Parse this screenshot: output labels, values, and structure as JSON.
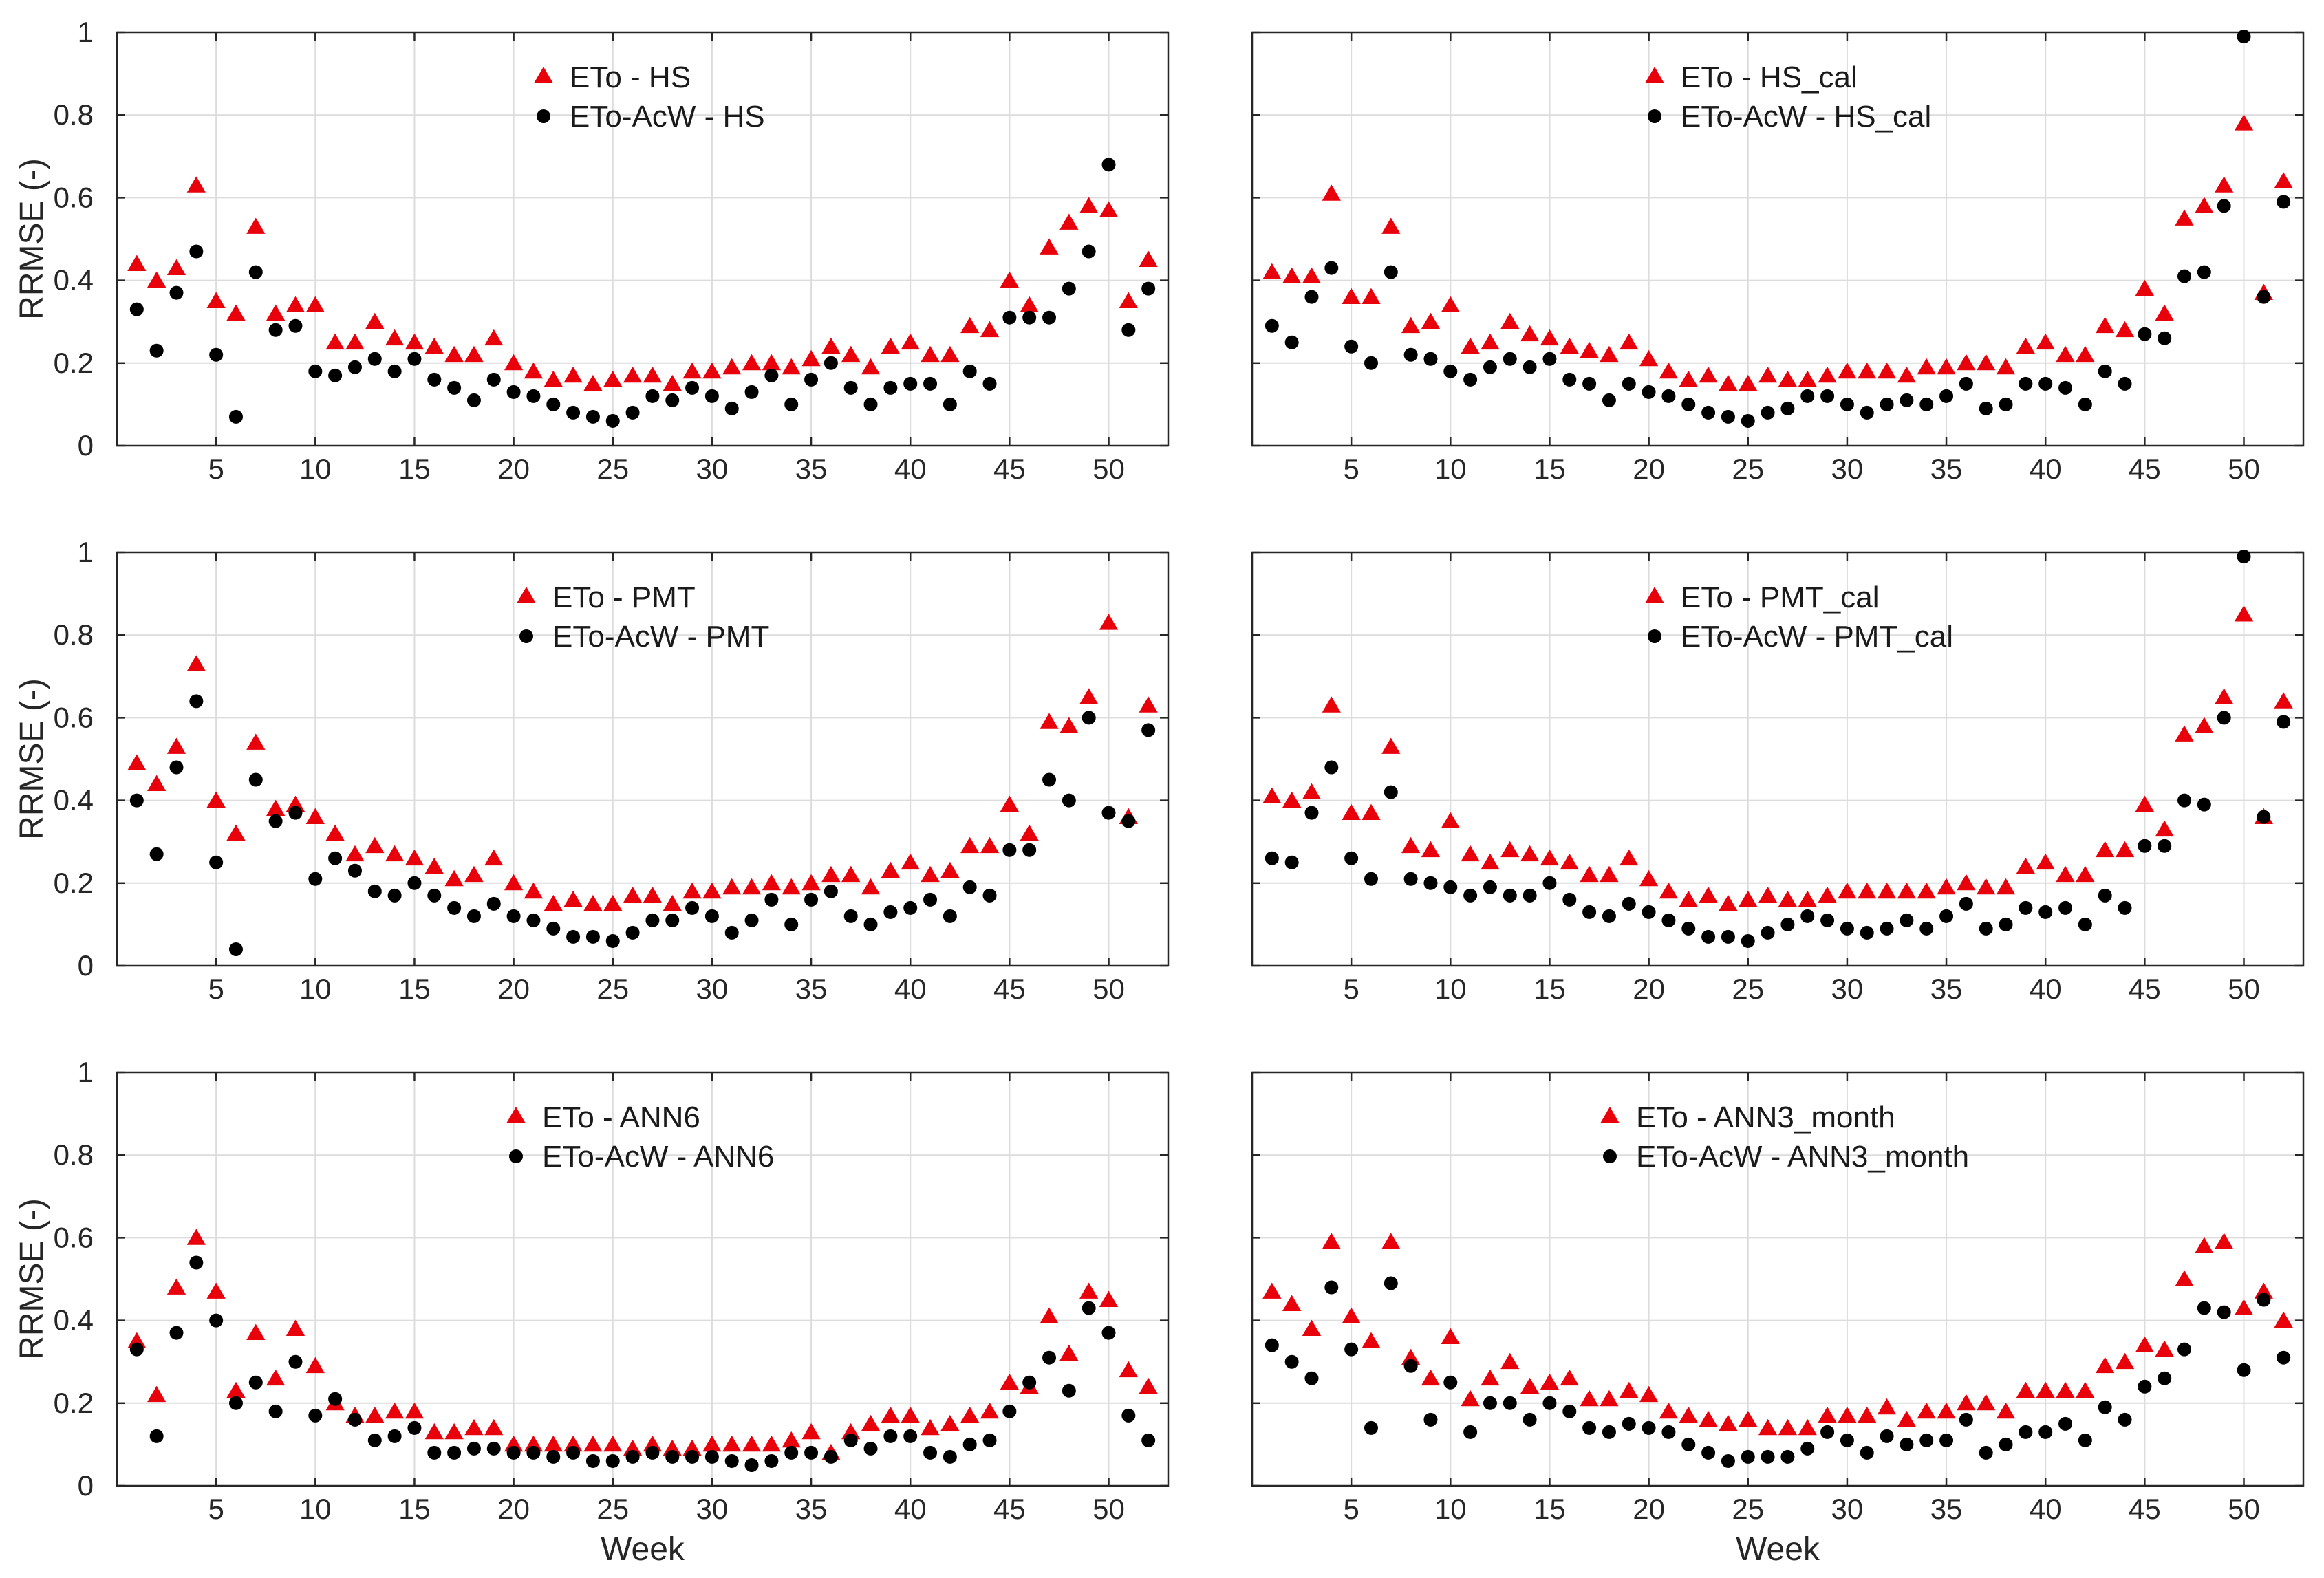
{
  "colors": {
    "eto": "#e8000b",
    "acw": "#000000",
    "grid": "#dcdcdc",
    "axis": "#262626"
  },
  "chart_data": [
    {
      "type": "scatter",
      "panel": "top-left",
      "xlabel": "",
      "ylabel": "RRMSE (-)",
      "xlim": [
        0,
        53
      ],
      "ylim": [
        0,
        1
      ],
      "xticks": [
        "5",
        "10",
        "15",
        "20",
        "25",
        "30",
        "35",
        "40",
        "45",
        "50"
      ],
      "yticks": [
        "0",
        "0.2",
        "0.4",
        "0.6",
        "0.8",
        "1"
      ],
      "legend_position": "top-center",
      "series": [
        {
          "name": "ETo - HS",
          "marker": "triangle",
          "color": "#e8000b",
          "values": [
            0.44,
            0.4,
            0.43,
            0.63,
            0.35,
            0.32,
            0.53,
            0.32,
            0.34,
            0.34,
            0.25,
            0.25,
            0.3,
            0.26,
            0.25,
            0.24,
            0.22,
            0.22,
            0.26,
            0.2,
            0.18,
            0.16,
            0.17,
            0.15,
            0.16,
            0.17,
            0.17,
            0.15,
            0.18,
            0.18,
            0.19,
            0.2,
            0.2,
            0.19,
            0.21,
            0.24,
            0.22,
            0.19,
            0.24,
            0.25,
            0.22,
            0.22,
            0.29,
            0.28,
            0.4,
            0.34,
            0.48,
            0.54,
            0.58,
            0.57,
            0.35,
            0.45
          ]
        },
        {
          "name": "ETo-AcW - HS",
          "marker": "circle",
          "color": "#000000",
          "values": [
            0.33,
            0.23,
            0.37,
            0.47,
            0.22,
            0.07,
            0.42,
            0.28,
            0.29,
            0.18,
            0.17,
            0.19,
            0.21,
            0.18,
            0.21,
            0.16,
            0.14,
            0.11,
            0.16,
            0.13,
            0.12,
            0.1,
            0.08,
            0.07,
            0.06,
            0.08,
            0.12,
            0.11,
            0.14,
            0.12,
            0.09,
            0.13,
            0.17,
            0.1,
            0.16,
            0.2,
            0.14,
            0.1,
            0.14,
            0.15,
            0.15,
            0.1,
            0.18,
            0.15,
            0.31,
            0.31,
            0.31,
            0.38,
            0.47,
            0.68,
            0.28,
            0.38
          ]
        }
      ]
    },
    {
      "type": "scatter",
      "panel": "top-right",
      "xlabel": "",
      "ylabel": "",
      "xlim": [
        0,
        53
      ],
      "ylim": [
        0,
        1
      ],
      "xticks": [
        "5",
        "10",
        "15",
        "20",
        "25",
        "30",
        "35",
        "40",
        "45",
        "50"
      ],
      "yticks": [],
      "legend_position": "top-center",
      "series": [
        {
          "name": "ETo - HS_cal",
          "marker": "triangle",
          "color": "#e8000b",
          "values": [
            0.42,
            0.41,
            0.41,
            0.61,
            0.36,
            0.36,
            0.53,
            0.29,
            0.3,
            0.34,
            0.24,
            0.25,
            0.3,
            0.27,
            0.26,
            0.24,
            0.23,
            0.22,
            0.25,
            0.21,
            0.18,
            0.16,
            0.17,
            0.15,
            0.15,
            0.17,
            0.16,
            0.16,
            0.17,
            0.18,
            0.18,
            0.18,
            0.17,
            0.19,
            0.19,
            0.2,
            0.2,
            0.19,
            0.24,
            0.25,
            0.22,
            0.22,
            0.29,
            0.28,
            0.38,
            0.32,
            0.55,
            0.58,
            0.63,
            0.78,
            0.37,
            0.64
          ]
        },
        {
          "name": "ETo-AcW - HS_cal",
          "marker": "circle",
          "color": "#000000",
          "values": [
            0.29,
            0.25,
            0.36,
            0.43,
            0.24,
            0.2,
            0.42,
            0.22,
            0.21,
            0.18,
            0.16,
            0.19,
            0.21,
            0.19,
            0.21,
            0.16,
            0.15,
            0.11,
            0.15,
            0.13,
            0.12,
            0.1,
            0.08,
            0.07,
            0.06,
            0.08,
            0.09,
            0.12,
            0.12,
            0.1,
            0.08,
            0.1,
            0.11,
            0.1,
            0.12,
            0.15,
            0.09,
            0.1,
            0.15,
            0.15,
            0.14,
            0.1,
            0.18,
            0.15,
            0.27,
            0.26,
            0.41,
            0.42,
            0.58,
            0.99,
            0.36,
            0.59
          ]
        }
      ]
    },
    {
      "type": "scatter",
      "panel": "middle-left",
      "xlabel": "",
      "ylabel": "RRMSE (-)",
      "xlim": [
        0,
        53
      ],
      "ylim": [
        0,
        1
      ],
      "xticks": [
        "5",
        "10",
        "15",
        "20",
        "25",
        "30",
        "35",
        "40",
        "45",
        "50"
      ],
      "yticks": [
        "0",
        "0.2",
        "0.4",
        "0.6",
        "0.8",
        "1"
      ],
      "legend_position": "top-center",
      "series": [
        {
          "name": "ETo - PMT",
          "marker": "triangle",
          "color": "#e8000b",
          "values": [
            0.49,
            0.44,
            0.53,
            0.73,
            0.4,
            0.32,
            0.54,
            0.38,
            0.39,
            0.36,
            0.32,
            0.27,
            0.29,
            0.27,
            0.26,
            0.24,
            0.21,
            0.22,
            0.26,
            0.2,
            0.18,
            0.15,
            0.16,
            0.15,
            0.15,
            0.17,
            0.17,
            0.15,
            0.18,
            0.18,
            0.19,
            0.19,
            0.2,
            0.19,
            0.2,
            0.22,
            0.22,
            0.19,
            0.23,
            0.25,
            0.22,
            0.23,
            0.29,
            0.29,
            0.39,
            0.32,
            0.59,
            0.58,
            0.65,
            0.83,
            0.36,
            0.63
          ]
        },
        {
          "name": "ETo-AcW - PMT",
          "marker": "circle",
          "color": "#000000",
          "values": [
            0.4,
            0.27,
            0.48,
            0.64,
            0.25,
            0.04,
            0.45,
            0.35,
            0.37,
            0.21,
            0.26,
            0.23,
            0.18,
            0.17,
            0.2,
            0.17,
            0.14,
            0.12,
            0.15,
            0.12,
            0.11,
            0.09,
            0.07,
            0.07,
            0.06,
            0.08,
            0.11,
            0.11,
            0.14,
            0.12,
            0.08,
            0.11,
            0.16,
            0.1,
            0.16,
            0.18,
            0.12,
            0.1,
            0.13,
            0.14,
            0.16,
            0.12,
            0.19,
            0.17,
            0.28,
            0.28,
            0.45,
            0.4,
            0.6,
            0.37,
            0.35,
            0.57
          ]
        }
      ]
    },
    {
      "type": "scatter",
      "panel": "middle-right",
      "xlabel": "",
      "ylabel": "",
      "xlim": [
        0,
        53
      ],
      "ylim": [
        0,
        1
      ],
      "xticks": [
        "5",
        "10",
        "15",
        "20",
        "25",
        "30",
        "35",
        "40",
        "45",
        "50"
      ],
      "yticks": [],
      "legend_position": "top-center",
      "series": [
        {
          "name": "ETo - PMT_cal",
          "marker": "triangle",
          "color": "#e8000b",
          "values": [
            0.41,
            0.4,
            0.42,
            0.63,
            0.37,
            0.37,
            0.53,
            0.29,
            0.28,
            0.35,
            0.27,
            0.25,
            0.28,
            0.27,
            0.26,
            0.25,
            0.22,
            0.22,
            0.26,
            0.21,
            0.18,
            0.16,
            0.17,
            0.15,
            0.16,
            0.17,
            0.16,
            0.16,
            0.17,
            0.18,
            0.18,
            0.18,
            0.18,
            0.18,
            0.19,
            0.2,
            0.19,
            0.19,
            0.24,
            0.25,
            0.22,
            0.22,
            0.28,
            0.28,
            0.39,
            0.33,
            0.56,
            0.58,
            0.65,
            0.85,
            0.36,
            0.64
          ]
        },
        {
          "name": "ETo-AcW - PMT_cal",
          "marker": "circle",
          "color": "#000000",
          "values": [
            0.26,
            0.25,
            0.37,
            0.48,
            0.26,
            0.21,
            0.42,
            0.21,
            0.2,
            0.19,
            0.17,
            0.19,
            0.17,
            0.17,
            0.2,
            0.16,
            0.13,
            0.12,
            0.15,
            0.13,
            0.11,
            0.09,
            0.07,
            0.07,
            0.06,
            0.08,
            0.1,
            0.12,
            0.11,
            0.09,
            0.08,
            0.09,
            0.11,
            0.09,
            0.12,
            0.15,
            0.09,
            0.1,
            0.14,
            0.13,
            0.14,
            0.1,
            0.17,
            0.14,
            0.29,
            0.29,
            0.4,
            0.39,
            0.6,
            0.99,
            0.36,
            0.59
          ]
        }
      ]
    },
    {
      "type": "scatter",
      "panel": "bottom-left",
      "xlabel": "Week",
      "ylabel": "RRMSE (-)",
      "xlim": [
        0,
        53
      ],
      "ylim": [
        0,
        1
      ],
      "xticks": [
        "5",
        "10",
        "15",
        "20",
        "25",
        "30",
        "35",
        "40",
        "45",
        "50"
      ],
      "yticks": [
        "0",
        "0.2",
        "0.4",
        "0.6",
        "0.8",
        "1"
      ],
      "legend_position": "top-center",
      "series": [
        {
          "name": "ETo - ANN6",
          "marker": "triangle",
          "color": "#e8000b",
          "values": [
            0.35,
            0.22,
            0.48,
            0.6,
            0.47,
            0.23,
            0.37,
            0.26,
            0.38,
            0.29,
            0.2,
            0.17,
            0.17,
            0.18,
            0.18,
            0.13,
            0.13,
            0.14,
            0.14,
            0.1,
            0.1,
            0.1,
            0.1,
            0.1,
            0.1,
            0.09,
            0.1,
            0.09,
            0.09,
            0.1,
            0.1,
            0.1,
            0.1,
            0.11,
            0.13,
            0.08,
            0.13,
            0.15,
            0.17,
            0.17,
            0.14,
            0.15,
            0.17,
            0.18,
            0.25,
            0.24,
            0.41,
            0.32,
            0.47,
            0.45,
            0.28,
            0.24
          ]
        },
        {
          "name": "ETo-AcW - ANN6",
          "marker": "circle",
          "color": "#000000",
          "values": [
            0.33,
            0.12,
            0.37,
            0.54,
            0.4,
            0.2,
            0.25,
            0.18,
            0.3,
            0.17,
            0.21,
            0.16,
            0.11,
            0.12,
            0.14,
            0.08,
            0.08,
            0.09,
            0.09,
            0.08,
            0.08,
            0.07,
            0.08,
            0.06,
            0.06,
            0.07,
            0.08,
            0.07,
            0.07,
            0.07,
            0.06,
            0.05,
            0.06,
            0.08,
            0.08,
            0.07,
            0.11,
            0.09,
            0.12,
            0.12,
            0.08,
            0.07,
            0.1,
            0.11,
            0.18,
            0.25,
            0.31,
            0.23,
            0.43,
            0.37,
            0.17,
            0.11
          ]
        }
      ]
    },
    {
      "type": "scatter",
      "panel": "bottom-right",
      "xlabel": "Week",
      "ylabel": "",
      "xlim": [
        0,
        53
      ],
      "ylim": [
        0,
        1
      ],
      "xticks": [
        "5",
        "10",
        "15",
        "20",
        "25",
        "30",
        "35",
        "40",
        "45",
        "50"
      ],
      "yticks": [],
      "legend_position": "top-center",
      "series": [
        {
          "name": "ETo - ANN3_month",
          "marker": "triangle",
          "color": "#e8000b",
          "values": [
            0.47,
            0.44,
            0.38,
            0.59,
            0.41,
            0.35,
            0.59,
            0.31,
            0.26,
            0.36,
            0.21,
            0.26,
            0.3,
            0.24,
            0.25,
            0.26,
            0.21,
            0.21,
            0.23,
            0.22,
            0.18,
            0.17,
            0.16,
            0.15,
            0.16,
            0.14,
            0.14,
            0.14,
            0.17,
            0.17,
            0.17,
            0.19,
            0.16,
            0.18,
            0.18,
            0.2,
            0.2,
            0.18,
            0.23,
            0.23,
            0.23,
            0.23,
            0.29,
            0.3,
            0.34,
            0.33,
            0.5,
            0.58,
            0.59,
            0.43,
            0.47,
            0.4
          ]
        },
        {
          "name": "ETo-AcW - ANN3_month",
          "marker": "circle",
          "color": "#000000",
          "values": [
            0.34,
            0.3,
            0.26,
            0.48,
            0.33,
            0.14,
            0.49,
            0.29,
            0.16,
            0.25,
            0.13,
            0.2,
            0.2,
            0.16,
            0.2,
            0.18,
            0.14,
            0.13,
            0.15,
            0.14,
            0.13,
            0.1,
            0.08,
            0.06,
            0.07,
            0.07,
            0.07,
            0.09,
            0.13,
            0.11,
            0.08,
            0.12,
            0.1,
            0.11,
            0.11,
            0.16,
            0.08,
            0.1,
            0.13,
            0.13,
            0.15,
            0.11,
            0.19,
            0.16,
            0.24,
            0.26,
            0.33,
            0.43,
            0.42,
            0.28,
            0.45,
            0.31
          ]
        }
      ]
    }
  ]
}
